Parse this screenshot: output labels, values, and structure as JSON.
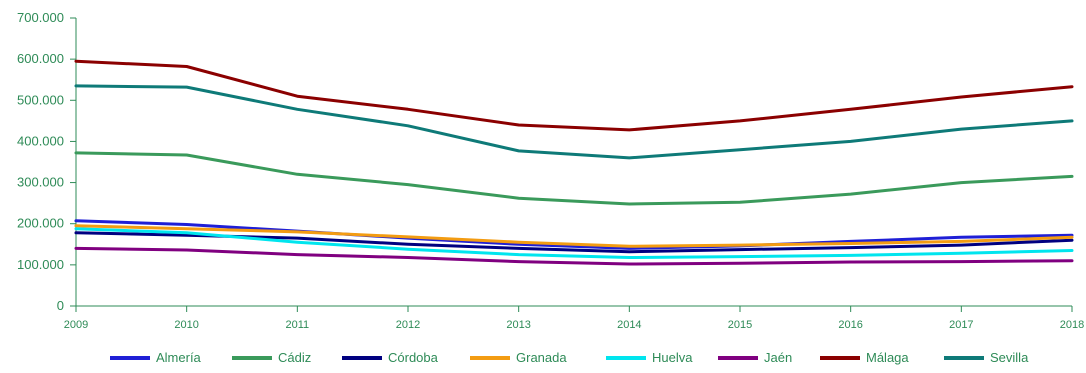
{
  "chart_data": {
    "type": "line",
    "x": [
      "2009",
      "2010",
      "2011",
      "2012",
      "2013",
      "2014",
      "2015",
      "2016",
      "2017",
      "2018"
    ],
    "y_ticks": [
      "0",
      "100.000",
      "200.000",
      "300.000",
      "400.000",
      "500.000",
      "600.000",
      "700.000"
    ],
    "ylim": [
      0,
      700000
    ],
    "grid": false,
    "legend_position": "bottom",
    "axis_color": "#2e8b57",
    "series": [
      {
        "name": "Almería",
        "color": "#1f1fd6",
        "values": [
          207000,
          198000,
          182000,
          165000,
          150000,
          140000,
          146000,
          157000,
          167000,
          172000
        ]
      },
      {
        "name": "Cádiz",
        "color": "#3a9a5b",
        "values": [
          372000,
          367000,
          320000,
          295000,
          262000,
          248000,
          252000,
          272000,
          300000,
          315000
        ]
      },
      {
        "name": "Córdoba",
        "color": "#000080",
        "values": [
          178000,
          172000,
          165000,
          150000,
          140000,
          132000,
          137000,
          142000,
          148000,
          160000
        ]
      },
      {
        "name": "Granada",
        "color": "#f39c12",
        "values": [
          195000,
          188000,
          180000,
          168000,
          155000,
          145000,
          148000,
          152000,
          157000,
          167000
        ]
      },
      {
        "name": "Huelva",
        "color": "#00e5ee",
        "values": [
          188000,
          178000,
          155000,
          138000,
          125000,
          118000,
          120000,
          123000,
          128000,
          135000
        ]
      },
      {
        "name": "Jaén",
        "color": "#800080",
        "values": [
          140000,
          136000,
          125000,
          118000,
          108000,
          102000,
          104000,
          107000,
          108000,
          110000
        ]
      },
      {
        "name": "Málaga",
        "color": "#8b0000",
        "values": [
          595000,
          582000,
          510000,
          478000,
          440000,
          428000,
          450000,
          478000,
          508000,
          533000
        ]
      },
      {
        "name": "Sevilla",
        "color": "#0e7a78",
        "values": [
          535000,
          532000,
          478000,
          438000,
          377000,
          360000,
          380000,
          400000,
          430000,
          450000
        ]
      }
    ]
  }
}
